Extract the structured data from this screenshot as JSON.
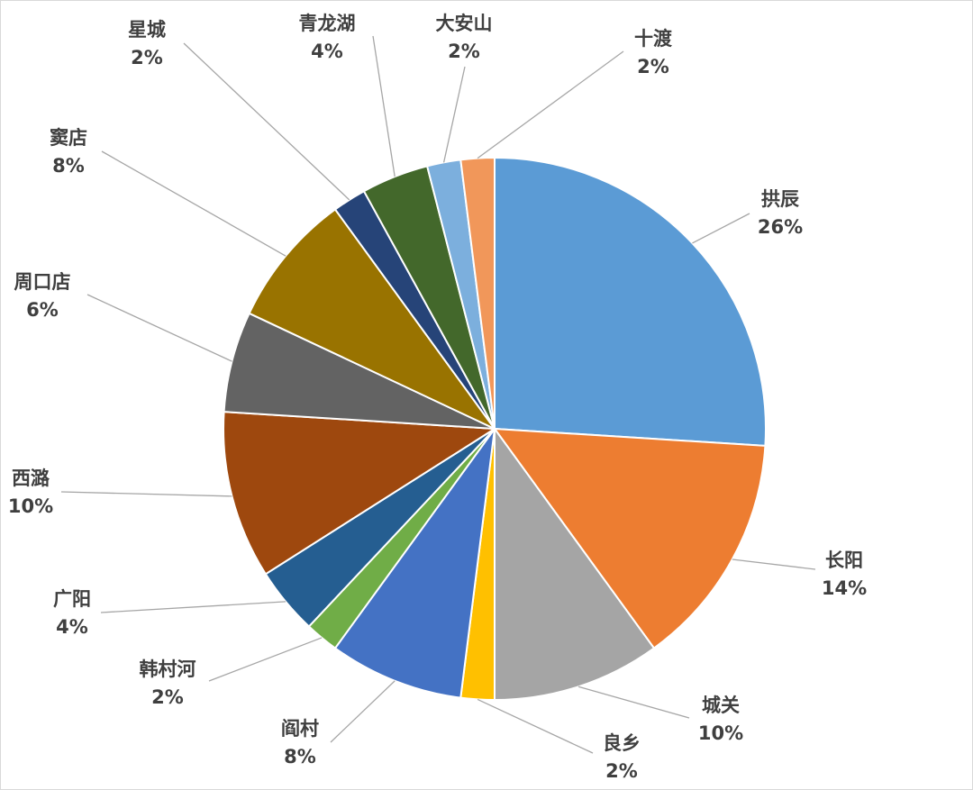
{
  "chart_data": {
    "type": "pie",
    "title": "",
    "start_angle_deg": 0,
    "direction": "clockwise",
    "slices": [
      {
        "label": "拱辰",
        "value": 26,
        "pct_label": "26%",
        "color": "#5B9BD5"
      },
      {
        "label": "长阳",
        "value": 14,
        "pct_label": "14%",
        "color": "#ED7D31"
      },
      {
        "label": "城关",
        "value": 10,
        "pct_label": "10%",
        "color": "#A5A5A5"
      },
      {
        "label": "良乡",
        "value": 2,
        "pct_label": "2%",
        "color": "#FFC000"
      },
      {
        "label": "阎村",
        "value": 8,
        "pct_label": "8%",
        "color": "#4472C4"
      },
      {
        "label": "韩村河",
        "value": 2,
        "pct_label": "2%",
        "color": "#70AD47"
      },
      {
        "label": "广阳",
        "value": 4,
        "pct_label": "4%",
        "color": "#255E91"
      },
      {
        "label": "西潞",
        "value": 10,
        "pct_label": "10%",
        "color": "#9E480E"
      },
      {
        "label": "周口店",
        "value": 6,
        "pct_label": "6%",
        "color": "#636363"
      },
      {
        "label": "窦店",
        "value": 8,
        "pct_label": "8%",
        "color": "#997300"
      },
      {
        "label": "星城",
        "value": 2,
        "pct_label": "2%",
        "color": "#264478"
      },
      {
        "label": "青龙湖",
        "value": 4,
        "pct_label": "4%",
        "color": "#43682B"
      },
      {
        "label": "大安山",
        "value": 2,
        "pct_label": "2%",
        "color": "#7CAFDD"
      },
      {
        "label": "十渡",
        "value": 2,
        "pct_label": "2%",
        "color": "#F1975A"
      }
    ]
  }
}
